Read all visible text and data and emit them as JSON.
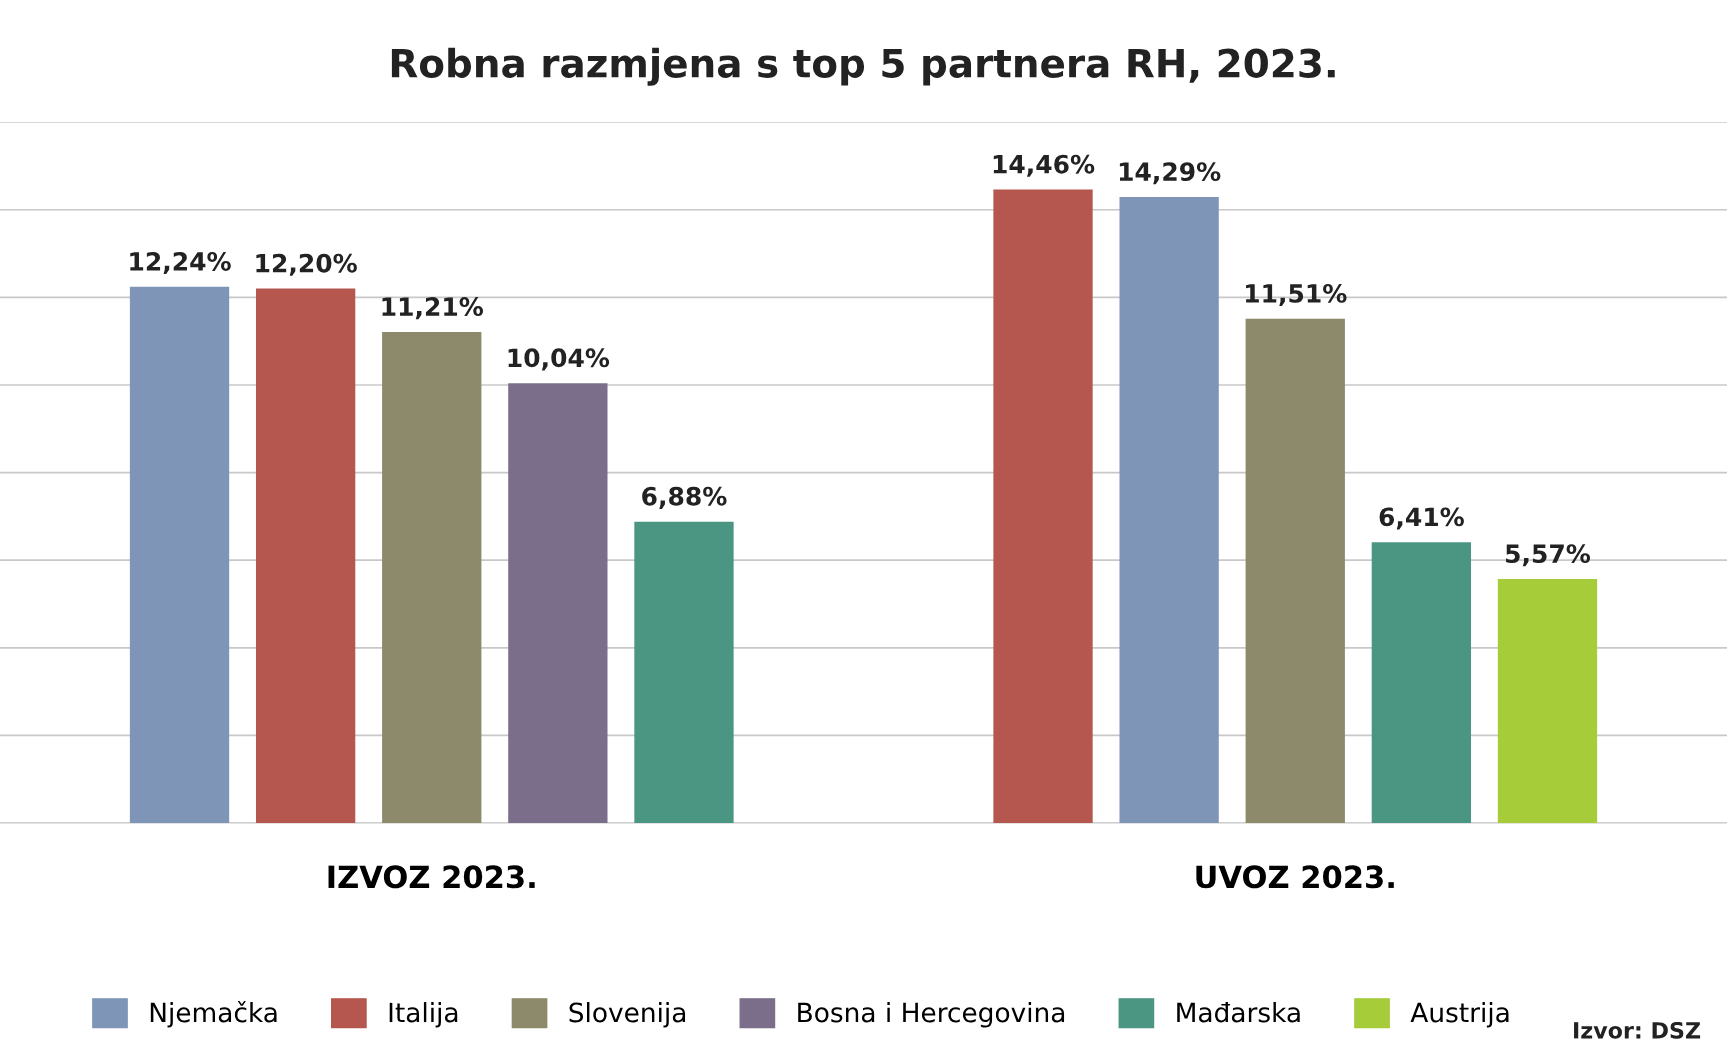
{
  "chart_data": {
    "type": "bar",
    "title": "Robna razmjena s top 5 partnera RH, 2023.",
    "categories": [
      "IZVOZ 2023.",
      "UVOZ 2023."
    ],
    "series": [
      {
        "name": "Njemačka",
        "color": "#7f95b8",
        "values": [
          12.24,
          14.29
        ],
        "value_labels": [
          "12,24%",
          "14,29%"
        ]
      },
      {
        "name": "Italija",
        "color": "#b5574e",
        "values": [
          12.2,
          14.46
        ],
        "value_labels": [
          "12,20%",
          "14,46%"
        ]
      },
      {
        "name": "Slovenija",
        "color": "#8c8a6a",
        "values": [
          11.21,
          11.51
        ],
        "value_labels": [
          "11,21%",
          "11,51%"
        ]
      },
      {
        "name": "Bosna i Hercegovina",
        "color": "#7a6e8a",
        "values": [
          10.04,
          null
        ],
        "value_labels": [
          "10,04%",
          null
        ]
      },
      {
        "name": "Mađarska",
        "color": "#4a9683",
        "values": [
          6.88,
          6.41
        ],
        "value_labels": [
          "6,88%",
          "6,41%"
        ]
      },
      {
        "name": "Austrija",
        "color": "#a6cc3a",
        "values": [
          null,
          5.57
        ],
        "value_labels": [
          null,
          "5,57%"
        ]
      }
    ],
    "ylim": [
      0,
      16
    ],
    "yticks": [
      {
        "value": 0,
        "label": null
      },
      {
        "value": 2,
        "label": null
      },
      {
        "value": 4,
        "label": null
      },
      {
        "value": 6,
        "label": null
      },
      {
        "value": 8,
        "label": null
      },
      {
        "value": 10,
        "label": null
      },
      {
        "value": 12,
        "label": null
      },
      {
        "value": 14,
        "label": null
      },
      {
        "value": 16,
        "label": null
      }
    ],
    "grid": "y",
    "legend": "bottom",
    "tick_labels": "x",
    "annotations": [
      "Izvor: DSZ"
    ]
  }
}
